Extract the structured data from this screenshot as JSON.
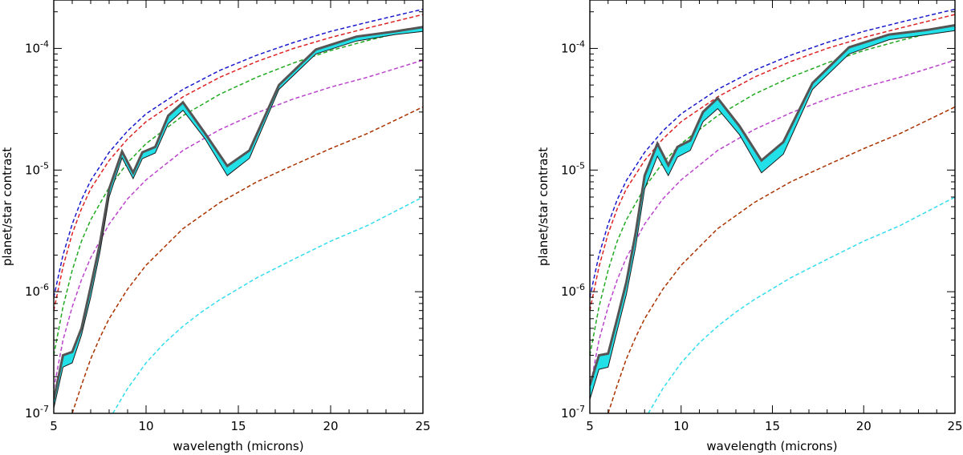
{
  "chart_data": [
    {
      "type": "line",
      "panel": "left",
      "xlabel": "wavelength (microns)",
      "ylabel": "planet/star contrast",
      "xlim": [
        5,
        25
      ],
      "ylim": [
        1e-07,
        0.00025
      ],
      "yscale": "log",
      "x_ticks": [
        5,
        10,
        15,
        20,
        25
      ],
      "x_tick_labels": [
        "5",
        "10",
        "15",
        "20",
        "25"
      ],
      "y_ticks": [
        1e-07,
        1e-06,
        1e-05,
        0.0001
      ],
      "y_tick_labels": [
        [
          "10",
          "-7"
        ],
        [
          "10",
          "-6"
        ],
        [
          "10",
          "-5"
        ],
        [
          "10",
          "-4"
        ]
      ],
      "reference_curves": [
        {
          "name": "blackbody-blue",
          "color": "#1a1acc",
          "style": "dashed",
          "x": [
            5,
            5.5,
            6,
            6.5,
            7,
            8,
            9,
            10,
            12,
            14,
            16,
            18,
            20,
            22,
            25
          ],
          "y": [
            9e-07,
            2e-06,
            3.6e-06,
            5.7e-06,
            8.2e-06,
            1.4e-05,
            2.1e-05,
            2.9e-05,
            4.6e-05,
            6.6e-05,
            8.8e-05,
            0.000112,
            0.000138,
            0.000164,
            0.00021
          ]
        },
        {
          "name": "blackbody-red",
          "color": "#dd2222",
          "style": "dashed",
          "x": [
            5,
            5.5,
            6,
            6.5,
            7,
            8,
            9,
            10,
            12,
            14,
            16,
            18,
            20,
            22,
            25
          ],
          "y": [
            7e-07,
            1.6e-06,
            3e-06,
            4.8e-06,
            7e-06,
            1.2e-05,
            1.8e-05,
            2.5e-05,
            4e-05,
            5.8e-05,
            7.8e-05,
            0.0001,
            0.000123,
            0.000147,
            0.00019
          ]
        },
        {
          "name": "blackbody-green",
          "color": "#22aa22",
          "style": "dashed",
          "x": [
            5,
            5.5,
            6,
            6.5,
            7,
            8,
            9,
            10,
            12,
            14,
            16,
            18,
            20,
            22,
            25
          ],
          "y": [
            3e-07,
            7.5e-07,
            1.5e-06,
            2.6e-06,
            3.9e-06,
            7.2e-06,
            1.15e-05,
            1.65e-05,
            2.8e-05,
            4.2e-05,
            5.8e-05,
            7.6e-05,
            9.6e-05,
            0.000116,
            0.00015
          ]
        },
        {
          "name": "blackbody-purple",
          "color": "#bb44cc",
          "style": "dashed",
          "x": [
            5,
            5.5,
            6,
            6.5,
            7,
            8,
            9,
            10,
            12,
            14,
            16,
            18,
            20,
            22,
            25
          ],
          "y": [
            1.6e-07,
            4e-07,
            7.5e-07,
            1.25e-06,
            1.9e-06,
            3.6e-06,
            5.8e-06,
            8.3e-06,
            1.45e-05,
            2.15e-05,
            2.95e-05,
            3.85e-05,
            4.8e-05,
            5.8e-05,
            8e-05
          ]
        },
        {
          "name": "blackbody-brown",
          "color": "#aa3300",
          "style": "dashed",
          "x": [
            6,
            6.5,
            7,
            7.5,
            8,
            9,
            10,
            12,
            14,
            16,
            18,
            20,
            22,
            25
          ],
          "y": [
            1e-07,
            1.7e-07,
            2.8e-07,
            4.2e-07,
            6e-07,
            1.05e-06,
            1.65e-06,
            3.3e-06,
            5.4e-06,
            8e-06,
            1.1e-05,
            1.5e-05,
            2e-05,
            3.3e-05
          ]
        },
        {
          "name": "blackbody-cyan",
          "color": "#33ddee",
          "style": "dashed",
          "x": [
            8.2,
            9,
            10,
            11,
            12,
            13,
            14,
            16,
            18,
            20,
            22,
            25
          ],
          "y": [
            1e-07,
            1.6e-07,
            2.6e-07,
            3.8e-07,
            5.2e-07,
            6.8e-07,
            8.6e-07,
            1.3e-06,
            1.85e-06,
            2.6e-06,
            3.5e-06,
            6e-06
          ]
        }
      ],
      "spectrum_x": [
        5,
        5.5,
        6,
        6.5,
        7,
        7.5,
        8,
        8.7,
        9.3,
        9.8,
        10.5,
        11.2,
        12,
        13.2,
        14.4,
        15.6,
        17.2,
        19.2,
        21.4,
        23.5,
        25
      ],
      "spectrum_upper": [
        1.3e-07,
        3e-07,
        3.2e-07,
        5e-07,
        1.1e-06,
        2.5e-06,
        7e-06,
        1.42e-05,
        9.5e-06,
        1.4e-05,
        1.55e-05,
        2.8e-05,
        3.6e-05,
        2e-05,
        1.08e-05,
        1.45e-05,
        5e-05,
        9.8e-05,
        0.000125,
        0.000138,
        0.00015
      ],
      "spectrum_lower": [
        1.1e-07,
        2.4e-07,
        2.6e-07,
        4.4e-07,
        9e-07,
        2.1e-06,
        6e-06,
        1.26e-05,
        8.5e-06,
        1.24e-05,
        1.38e-05,
        2.4e-05,
        3.1e-05,
        1.8e-05,
        9e-06,
        1.25e-05,
        4.6e-05,
        9e-05,
        0.000115,
        0.00013,
        0.000138
      ],
      "spectrum_colors": {
        "band": "#22e0e8",
        "edge": "#555555"
      }
    },
    {
      "type": "line",
      "panel": "right",
      "xlabel": "wavelength (microns)",
      "ylabel": "planet/star contrast",
      "xlim": [
        5,
        25
      ],
      "ylim": [
        1e-07,
        0.00025
      ],
      "yscale": "log",
      "x_ticks": [
        5,
        10,
        15,
        20,
        25
      ],
      "x_tick_labels": [
        "5",
        "10",
        "15",
        "20",
        "25"
      ],
      "y_ticks": [
        1e-07,
        1e-06,
        1e-05,
        0.0001
      ],
      "y_tick_labels": [
        [
          "10",
          "-7"
        ],
        [
          "10",
          "-6"
        ],
        [
          "10",
          "-5"
        ],
        [
          "10",
          "-4"
        ]
      ],
      "reference_curves": [
        {
          "name": "blackbody-blue",
          "color": "#1a1acc",
          "style": "dashed",
          "x": [
            5,
            5.5,
            6,
            6.5,
            7,
            8,
            9,
            10,
            12,
            14,
            16,
            18,
            20,
            22,
            25
          ],
          "y": [
            9e-07,
            2e-06,
            3.6e-06,
            5.7e-06,
            8.2e-06,
            1.4e-05,
            2.1e-05,
            2.9e-05,
            4.6e-05,
            6.6e-05,
            8.8e-05,
            0.000112,
            0.000138,
            0.000164,
            0.00021
          ]
        },
        {
          "name": "blackbody-red",
          "color": "#dd2222",
          "style": "dashed",
          "x": [
            5,
            5.5,
            6,
            6.5,
            7,
            8,
            9,
            10,
            12,
            14,
            16,
            18,
            20,
            22,
            25
          ],
          "y": [
            7e-07,
            1.6e-06,
            3e-06,
            4.8e-06,
            7e-06,
            1.2e-05,
            1.8e-05,
            2.5e-05,
            4e-05,
            5.8e-05,
            7.8e-05,
            0.0001,
            0.000123,
            0.000147,
            0.00019
          ]
        },
        {
          "name": "blackbody-green",
          "color": "#22aa22",
          "style": "dashed",
          "x": [
            5,
            5.5,
            6,
            6.5,
            7,
            8,
            9,
            10,
            12,
            14,
            16,
            18,
            20,
            22,
            25
          ],
          "y": [
            3e-07,
            7.5e-07,
            1.5e-06,
            2.6e-06,
            3.9e-06,
            7.2e-06,
            1.15e-05,
            1.65e-05,
            2.8e-05,
            4.2e-05,
            5.8e-05,
            7.6e-05,
            9.6e-05,
            0.000116,
            0.00015
          ]
        },
        {
          "name": "blackbody-purple",
          "color": "#bb44cc",
          "style": "dashed",
          "x": [
            5,
            5.5,
            6,
            6.5,
            7,
            8,
            9,
            10,
            12,
            14,
            16,
            18,
            20,
            22,
            25
          ],
          "y": [
            1.6e-07,
            4e-07,
            7.5e-07,
            1.25e-06,
            1.9e-06,
            3.6e-06,
            5.8e-06,
            8.3e-06,
            1.45e-05,
            2.15e-05,
            2.95e-05,
            3.85e-05,
            4.8e-05,
            5.8e-05,
            8e-05
          ]
        },
        {
          "name": "blackbody-brown",
          "color": "#aa3300",
          "style": "dashed",
          "x": [
            6,
            6.5,
            7,
            7.5,
            8,
            9,
            10,
            12,
            14,
            16,
            18,
            20,
            22,
            25
          ],
          "y": [
            1e-07,
            1.7e-07,
            2.8e-07,
            4.2e-07,
            6e-07,
            1.05e-06,
            1.65e-06,
            3.3e-06,
            5.4e-06,
            8e-06,
            1.1e-05,
            1.5e-05,
            2e-05,
            3.3e-05
          ]
        },
        {
          "name": "blackbody-cyan",
          "color": "#33ddee",
          "style": "dashed",
          "x": [
            8.2,
            9,
            10,
            11,
            12,
            13,
            14,
            16,
            18,
            20,
            22,
            25
          ],
          "y": [
            1e-07,
            1.6e-07,
            2.6e-07,
            3.8e-07,
            5.2e-07,
            6.8e-07,
            8.6e-07,
            1.3e-06,
            1.85e-06,
            2.6e-06,
            3.5e-06,
            6e-06
          ]
        }
      ],
      "spectrum_x": [
        5,
        5.5,
        6,
        6.5,
        7,
        7.5,
        8,
        8.7,
        9.3,
        9.8,
        10.5,
        11.2,
        12,
        13.2,
        14.4,
        15.6,
        17.2,
        19.2,
        21.4,
        23.5,
        25
      ],
      "spectrum_upper": [
        1.7e-07,
        3e-07,
        3.1e-07,
        6e-07,
        1.2e-06,
        3e-06,
        9e-06,
        1.65e-05,
        1.1e-05,
        1.55e-05,
        1.75e-05,
        3e-05,
        3.9e-05,
        2.3e-05,
        1.2e-05,
        1.7e-05,
        5.2e-05,
        0.000102,
        0.00013,
        0.000142,
        0.000155
      ],
      "spectrum_lower": [
        1.3e-07,
        2.3e-07,
        2.4e-07,
        4.8e-07,
        9.5e-07,
        2.3e-06,
        7e-06,
        1.3e-05,
        9e-06,
        1.28e-05,
        1.45e-05,
        2.5e-05,
        3.2e-05,
        1.95e-05,
        9.5e-06,
        1.35e-05,
        4.6e-05,
        9e-05,
        0.000118,
        0.00013,
        0.00014
      ],
      "spectrum_colors": {
        "band": "#22e0e8",
        "edge": "#555555"
      }
    }
  ]
}
